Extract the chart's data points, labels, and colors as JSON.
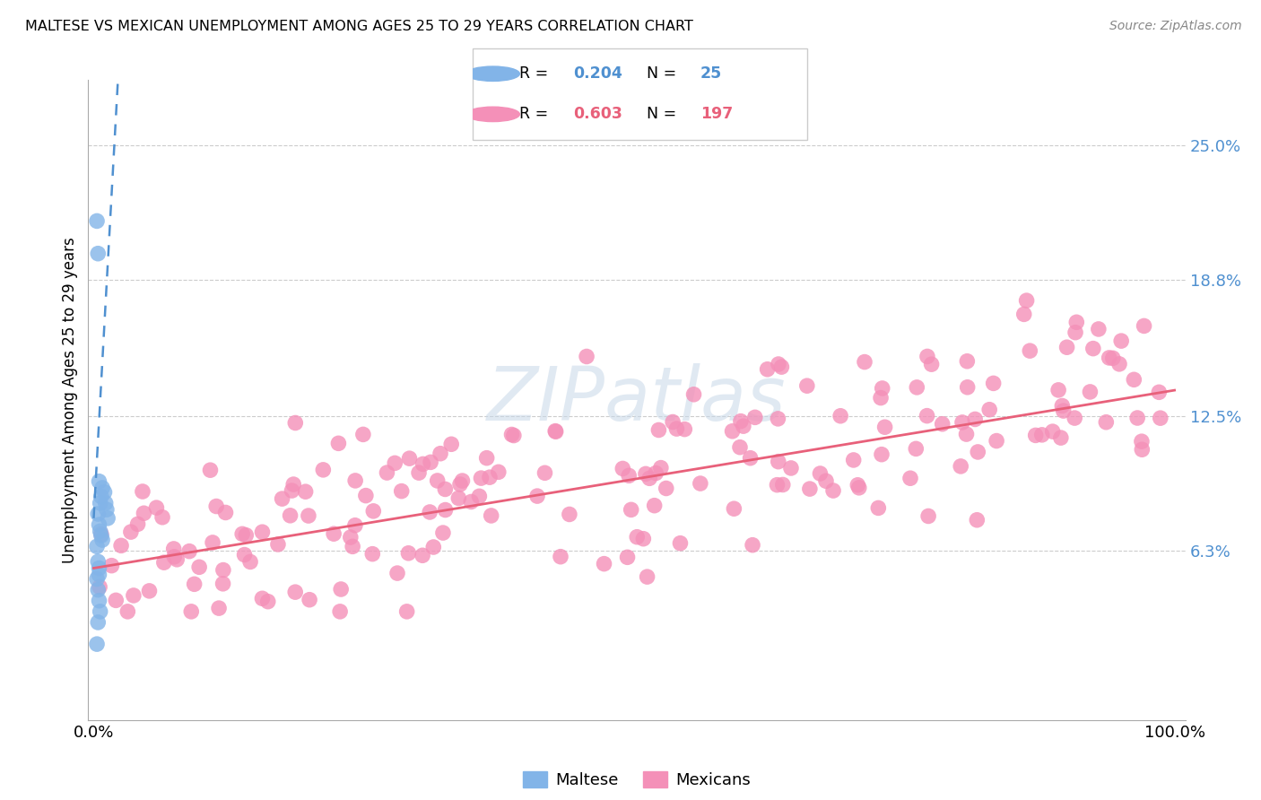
{
  "title": "MALTESE VS MEXICAN UNEMPLOYMENT AMONG AGES 25 TO 29 YEARS CORRELATION CHART",
  "source": "Source: ZipAtlas.com",
  "ylabel": "Unemployment Among Ages 25 to 29 years",
  "maltese_color": "#82b4e8",
  "mexican_color": "#f490b8",
  "maltese_line_color": "#4f90d0",
  "mexican_line_color": "#e8607a",
  "watermark": "ZIPatlas",
  "legend_maltese_R": "0.204",
  "legend_maltese_N": "25",
  "legend_mexican_R": "0.603",
  "legend_mexican_N": "197",
  "ytick_vals": [
    6.3,
    12.5,
    18.8,
    25.0
  ],
  "maltese_x": [
    0.3,
    0.4,
    0.5,
    0.6,
    0.7,
    0.8,
    1.0,
    1.1,
    1.2,
    1.3,
    0.4,
    0.5,
    0.6,
    0.7,
    0.8,
    0.3,
    0.4,
    0.5,
    0.3,
    0.4,
    0.5,
    0.6,
    0.4,
    0.3,
    0.5
  ],
  "maltese_y": [
    21.5,
    20.0,
    9.5,
    8.5,
    8.8,
    9.2,
    9.0,
    8.5,
    8.2,
    7.8,
    8.0,
    7.5,
    7.2,
    7.0,
    6.8,
    6.5,
    5.8,
    5.5,
    5.0,
    4.5,
    4.0,
    3.5,
    3.0,
    2.0,
    5.2
  ],
  "mex_seed": 42,
  "mex_n": 197,
  "mex_slope": 0.082,
  "mex_intercept": 5.5,
  "mex_noise_std": 2.2,
  "malt_reg_slope": 9.0,
  "malt_reg_intercept": 7.8
}
